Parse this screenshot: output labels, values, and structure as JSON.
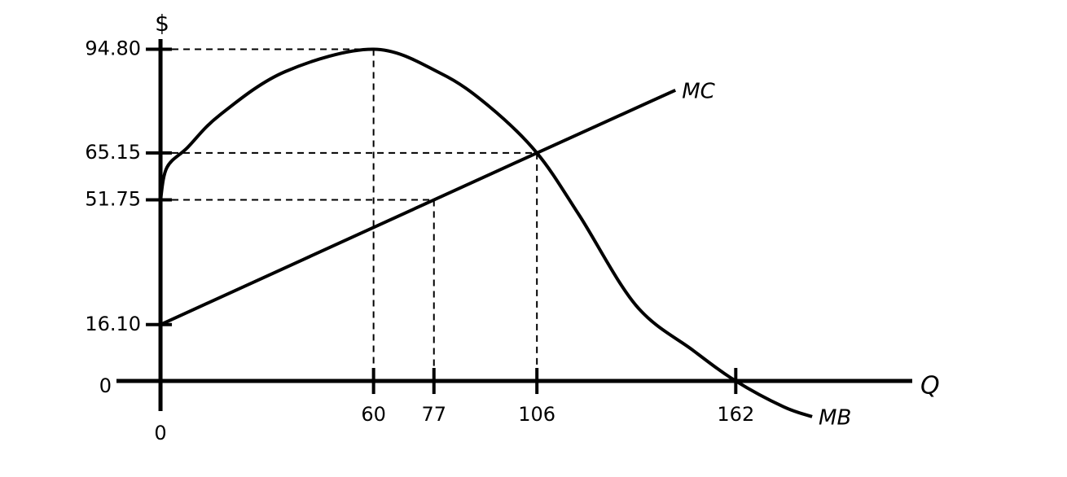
{
  "chart_data": {
    "type": "line",
    "x_label": "Q",
    "y_label": "$",
    "xlim": [
      -12.4,
      211.7
    ],
    "ylim": [
      -8.6,
      97.7
    ],
    "xticks": [
      0,
      60,
      77,
      106,
      162
    ],
    "yticks": [
      0,
      {
        "value": 16.1,
        "label": "16.10"
      },
      51.75,
      65.15,
      {
        "value": 94.8,
        "label": "94.80"
      }
    ],
    "series": [
      {
        "name": "MB",
        "color": "#000000",
        "x": [
          0,
          1.8,
          7.6,
          16.7,
          35.1,
          60,
          78.9,
          92.4,
          106,
          117.9,
          133.9,
          149.9,
          162,
          175.5,
          183.5
        ],
        "values": [
          51.75,
          61,
          66.7,
          76,
          88.4,
          94.8,
          87.9,
          78.6,
          65.15,
          47.4,
          21.6,
          8.8,
          0,
          -7.4,
          -10.2
        ]
      },
      {
        "name": "MC",
        "color": "#000000",
        "x": [
          0,
          77,
          106,
          145
        ],
        "values": [
          16.1,
          51.75,
          65.15,
          83.1
        ]
      }
    ],
    "guides": [
      {
        "x": 60,
        "y": 94.8
      },
      {
        "x": 77,
        "y": 51.75
      },
      {
        "x": 106,
        "y": 65.15
      }
    ]
  }
}
